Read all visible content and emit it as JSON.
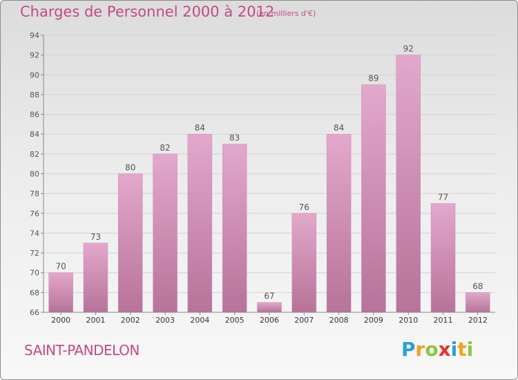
{
  "header": {
    "title": "Charges de Personnel 2000 à 2012",
    "subtitle": "(en milliers d'€)"
  },
  "footer": {
    "city": "SAINT-PANDELON",
    "logo": [
      "P",
      "r",
      "o",
      "x",
      "i",
      "t",
      "i"
    ]
  },
  "colors": {
    "title": "#c24a88",
    "bar_light": "#e3a8cc",
    "bar_dark": "#b77399",
    "axis": "#888888",
    "grid": "#d2d2d2",
    "logo": [
      "#2a9fd8",
      "#f2a11c",
      "#8cc540",
      "#e2352a",
      "#2a9fd8",
      "#f2a11c",
      "#8cc540"
    ]
  },
  "chart_data": {
    "type": "bar",
    "title": "Charges de Personnel 2000 à 2012",
    "subtitle": "(en milliers d'€)",
    "categories": [
      "2000",
      "2001",
      "2002",
      "2003",
      "2004",
      "2005",
      "2006",
      "2007",
      "2008",
      "2009",
      "2010",
      "2011",
      "2012"
    ],
    "values": [
      70,
      73,
      80,
      82,
      84,
      83,
      67,
      76,
      84,
      89,
      92,
      77,
      68
    ],
    "ylim": [
      66,
      94
    ],
    "yticks": [
      66,
      68,
      70,
      72,
      74,
      76,
      78,
      80,
      82,
      84,
      86,
      88,
      90,
      92,
      94
    ],
    "grid": true,
    "data_labels": true
  }
}
